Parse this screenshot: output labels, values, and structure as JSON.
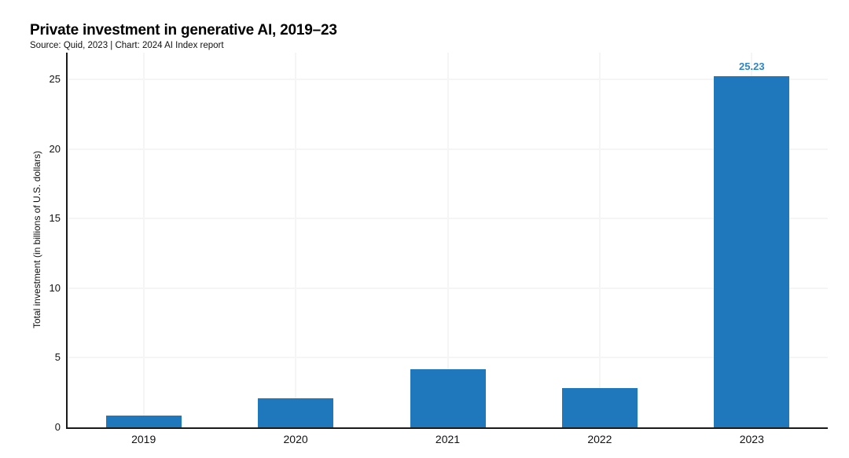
{
  "chart_data": {
    "type": "bar",
    "title": "Private investment in generative AI, 2019–23",
    "subtitle": "Source: Quid, 2023 | Chart: 2024 AI Index report",
    "ylabel": "Total investment (in billions of U.S. dollars)",
    "xlabel": "",
    "categories": [
      "2019",
      "2020",
      "2021",
      "2022",
      "2023"
    ],
    "values": [
      0.85,
      2.08,
      4.15,
      2.85,
      25.23
    ],
    "value_labels": [
      null,
      null,
      null,
      null,
      "25.23"
    ],
    "yticks": [
      0,
      5,
      10,
      15,
      20,
      25
    ],
    "ylim": [
      0,
      26.9
    ],
    "grid": true,
    "legend": false,
    "colors": {
      "bar": "#1f78bc",
      "value_label": "#2e86c6",
      "axis": "#1a1a1a",
      "gridline": "#f5f5f5",
      "text": "#111111"
    }
  }
}
